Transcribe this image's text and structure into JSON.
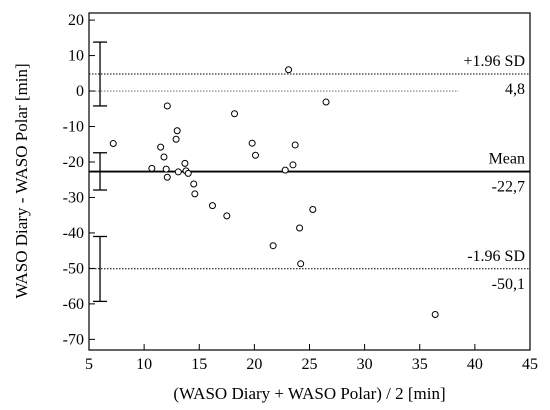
{
  "chart_data": {
    "type": "scatter",
    "title": "",
    "xlabel": "(WASO Diary + WASO Polar) / 2 [min]",
    "ylabel": "WASO Diary - WASO Polar [min]",
    "xlim": [
      5,
      45
    ],
    "ylim": [
      -73,
      22
    ],
    "xticks": [
      5,
      10,
      15,
      20,
      25,
      30,
      35,
      40,
      45
    ],
    "yticks": [
      20,
      10,
      0,
      -10,
      -20,
      -30,
      -40,
      -50,
      -60,
      -70
    ],
    "tick_labels_x": [
      "5",
      "10",
      "15",
      "20",
      "25",
      "30",
      "35",
      "40",
      "45"
    ],
    "tick_labels_y": [
      "20",
      "10",
      "0",
      "-10",
      "-20",
      "-30",
      "-40",
      "-50",
      "-60",
      "-70"
    ],
    "grid": false,
    "points": [
      {
        "x": 7.2,
        "y": -14.8
      },
      {
        "x": 10.7,
        "y": -21.8
      },
      {
        "x": 11.5,
        "y": -15.8
      },
      {
        "x": 11.8,
        "y": -18.6
      },
      {
        "x": 12.0,
        "y": -22.0
      },
      {
        "x": 12.1,
        "y": -24.3
      },
      {
        "x": 12.1,
        "y": -4.2
      },
      {
        "x": 12.9,
        "y": -13.6
      },
      {
        "x": 13.0,
        "y": -11.2
      },
      {
        "x": 13.1,
        "y": -22.8
      },
      {
        "x": 13.7,
        "y": -20.4
      },
      {
        "x": 13.8,
        "y": -22.5
      },
      {
        "x": 14.0,
        "y": -23.2
      },
      {
        "x": 14.5,
        "y": -26.2
      },
      {
        "x": 14.6,
        "y": -29.0
      },
      {
        "x": 16.2,
        "y": -32.3
      },
      {
        "x": 17.5,
        "y": -35.2
      },
      {
        "x": 18.2,
        "y": -6.4
      },
      {
        "x": 19.8,
        "y": -14.7
      },
      {
        "x": 20.1,
        "y": -18.1
      },
      {
        "x": 21.7,
        "y": -43.6
      },
      {
        "x": 22.8,
        "y": -22.3
      },
      {
        "x": 23.1,
        "y": 6.0
      },
      {
        "x": 23.5,
        "y": -20.8
      },
      {
        "x": 23.7,
        "y": -15.2
      },
      {
        "x": 24.1,
        "y": -38.6
      },
      {
        "x": 24.2,
        "y": -48.7
      },
      {
        "x": 25.3,
        "y": -33.4
      },
      {
        "x": 26.5,
        "y": -3.1
      },
      {
        "x": 36.4,
        "y": -63.0
      }
    ],
    "reference_lines": [
      {
        "name": "upper-loa",
        "label": "+1.96 SD",
        "value_label": "4,8",
        "y": 4.8,
        "style": "dotted"
      },
      {
        "name": "zero",
        "label": "",
        "value_label": "",
        "y": 0,
        "style": "dotted-light"
      },
      {
        "name": "mean",
        "label": "Mean",
        "value_label": "-22,7",
        "y": -22.7,
        "style": "solid"
      },
      {
        "name": "lower-loa",
        "label": "-1.96 SD",
        "value_label": "-50,1",
        "y": -50.1,
        "style": "dotted"
      }
    ],
    "confidence_intervals": [
      {
        "name": "upper-loa-ci",
        "x": 6.0,
        "y_low": -4.2,
        "y_high": 13.8
      },
      {
        "name": "mean-ci",
        "x": 6.0,
        "y_low": -27.9,
        "y_high": -17.4
      },
      {
        "name": "lower-loa-ci",
        "x": 6.0,
        "y_low": -59.3,
        "y_high": -41.0
      }
    ]
  }
}
